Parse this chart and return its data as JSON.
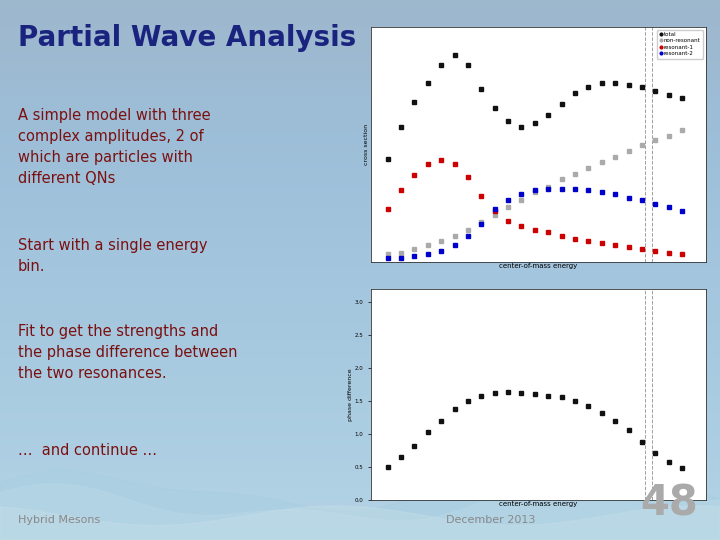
{
  "title": "Partial Wave Analysis",
  "title_color": "#1a237e",
  "text_lines": [
    "A simple model with three\ncomplex amplitudes, 2 of\nwhich are particles with\ndifferent QNs",
    "Start with a single energy\nbin.",
    "Fit to get the strengths and\nthe phase difference between\nthe two resonances.",
    "…  and continue …"
  ],
  "text_color": "#7b1010",
  "footer_left": "Hybrid Mesons",
  "footer_right": "December 2013",
  "footer_number": "48",
  "footer_color": "#888888",
  "plot1": {
    "ylabel": "cross section",
    "xlabel": "center-of-mass energy",
    "legend": [
      "total",
      "non-resonant",
      "resonant-1",
      "resonant-2"
    ],
    "legend_colors": [
      "#111111",
      "#aaaaaa",
      "#cc0000",
      "#0000cc"
    ],
    "total_x": [
      0.05,
      0.09,
      0.13,
      0.17,
      0.21,
      0.25,
      0.29,
      0.33,
      0.37,
      0.41,
      0.45,
      0.49,
      0.53,
      0.57,
      0.61,
      0.65,
      0.69,
      0.73,
      0.77,
      0.81,
      0.85,
      0.89,
      0.93
    ],
    "total_y": [
      0.55,
      0.72,
      0.85,
      0.95,
      1.05,
      1.1,
      1.05,
      0.92,
      0.82,
      0.75,
      0.72,
      0.74,
      0.78,
      0.84,
      0.9,
      0.93,
      0.95,
      0.95,
      0.94,
      0.93,
      0.91,
      0.89,
      0.87
    ],
    "nonres_x": [
      0.05,
      0.09,
      0.13,
      0.17,
      0.21,
      0.25,
      0.29,
      0.33,
      0.37,
      0.41,
      0.45,
      0.49,
      0.53,
      0.57,
      0.61,
      0.65,
      0.69,
      0.73,
      0.77,
      0.81,
      0.85,
      0.89,
      0.93
    ],
    "nonres_y": [
      0.04,
      0.05,
      0.07,
      0.09,
      0.11,
      0.14,
      0.17,
      0.21,
      0.25,
      0.29,
      0.33,
      0.37,
      0.4,
      0.44,
      0.47,
      0.5,
      0.53,
      0.56,
      0.59,
      0.62,
      0.65,
      0.67,
      0.7
    ],
    "res1_x": [
      0.05,
      0.09,
      0.13,
      0.17,
      0.21,
      0.25,
      0.29,
      0.33,
      0.37,
      0.41,
      0.45,
      0.49,
      0.53,
      0.57,
      0.61,
      0.65,
      0.69,
      0.73,
      0.77,
      0.81,
      0.85,
      0.89,
      0.93
    ],
    "res1_y": [
      0.28,
      0.38,
      0.46,
      0.52,
      0.54,
      0.52,
      0.45,
      0.35,
      0.27,
      0.22,
      0.19,
      0.17,
      0.16,
      0.14,
      0.12,
      0.11,
      0.1,
      0.09,
      0.08,
      0.07,
      0.06,
      0.05,
      0.04
    ],
    "res2_x": [
      0.05,
      0.09,
      0.13,
      0.17,
      0.21,
      0.25,
      0.29,
      0.33,
      0.37,
      0.41,
      0.45,
      0.49,
      0.53,
      0.57,
      0.61,
      0.65,
      0.69,
      0.73,
      0.77,
      0.81,
      0.85,
      0.89,
      0.93
    ],
    "res2_y": [
      0.02,
      0.02,
      0.03,
      0.04,
      0.06,
      0.09,
      0.14,
      0.2,
      0.28,
      0.33,
      0.36,
      0.38,
      0.39,
      0.39,
      0.39,
      0.38,
      0.37,
      0.36,
      0.34,
      0.33,
      0.31,
      0.29,
      0.27
    ],
    "vline_x": 0.82
  },
  "plot2": {
    "ylabel": "phase difference",
    "xlabel": "center-of-mass energy",
    "data_x": [
      0.05,
      0.09,
      0.13,
      0.17,
      0.21,
      0.25,
      0.29,
      0.33,
      0.37,
      0.41,
      0.45,
      0.49,
      0.53,
      0.57,
      0.61,
      0.65,
      0.69,
      0.73,
      0.77,
      0.81,
      0.85,
      0.89,
      0.93
    ],
    "data_y": [
      0.5,
      0.65,
      0.82,
      1.02,
      1.2,
      1.38,
      1.5,
      1.58,
      1.62,
      1.63,
      1.62,
      1.6,
      1.58,
      1.55,
      1.5,
      1.42,
      1.32,
      1.2,
      1.05,
      0.88,
      0.7,
      0.57,
      0.48
    ],
    "yticks": [
      0,
      0.5,
      1.0,
      1.5,
      2.0,
      2.5,
      3.0
    ],
    "vline_x": 0.82
  }
}
